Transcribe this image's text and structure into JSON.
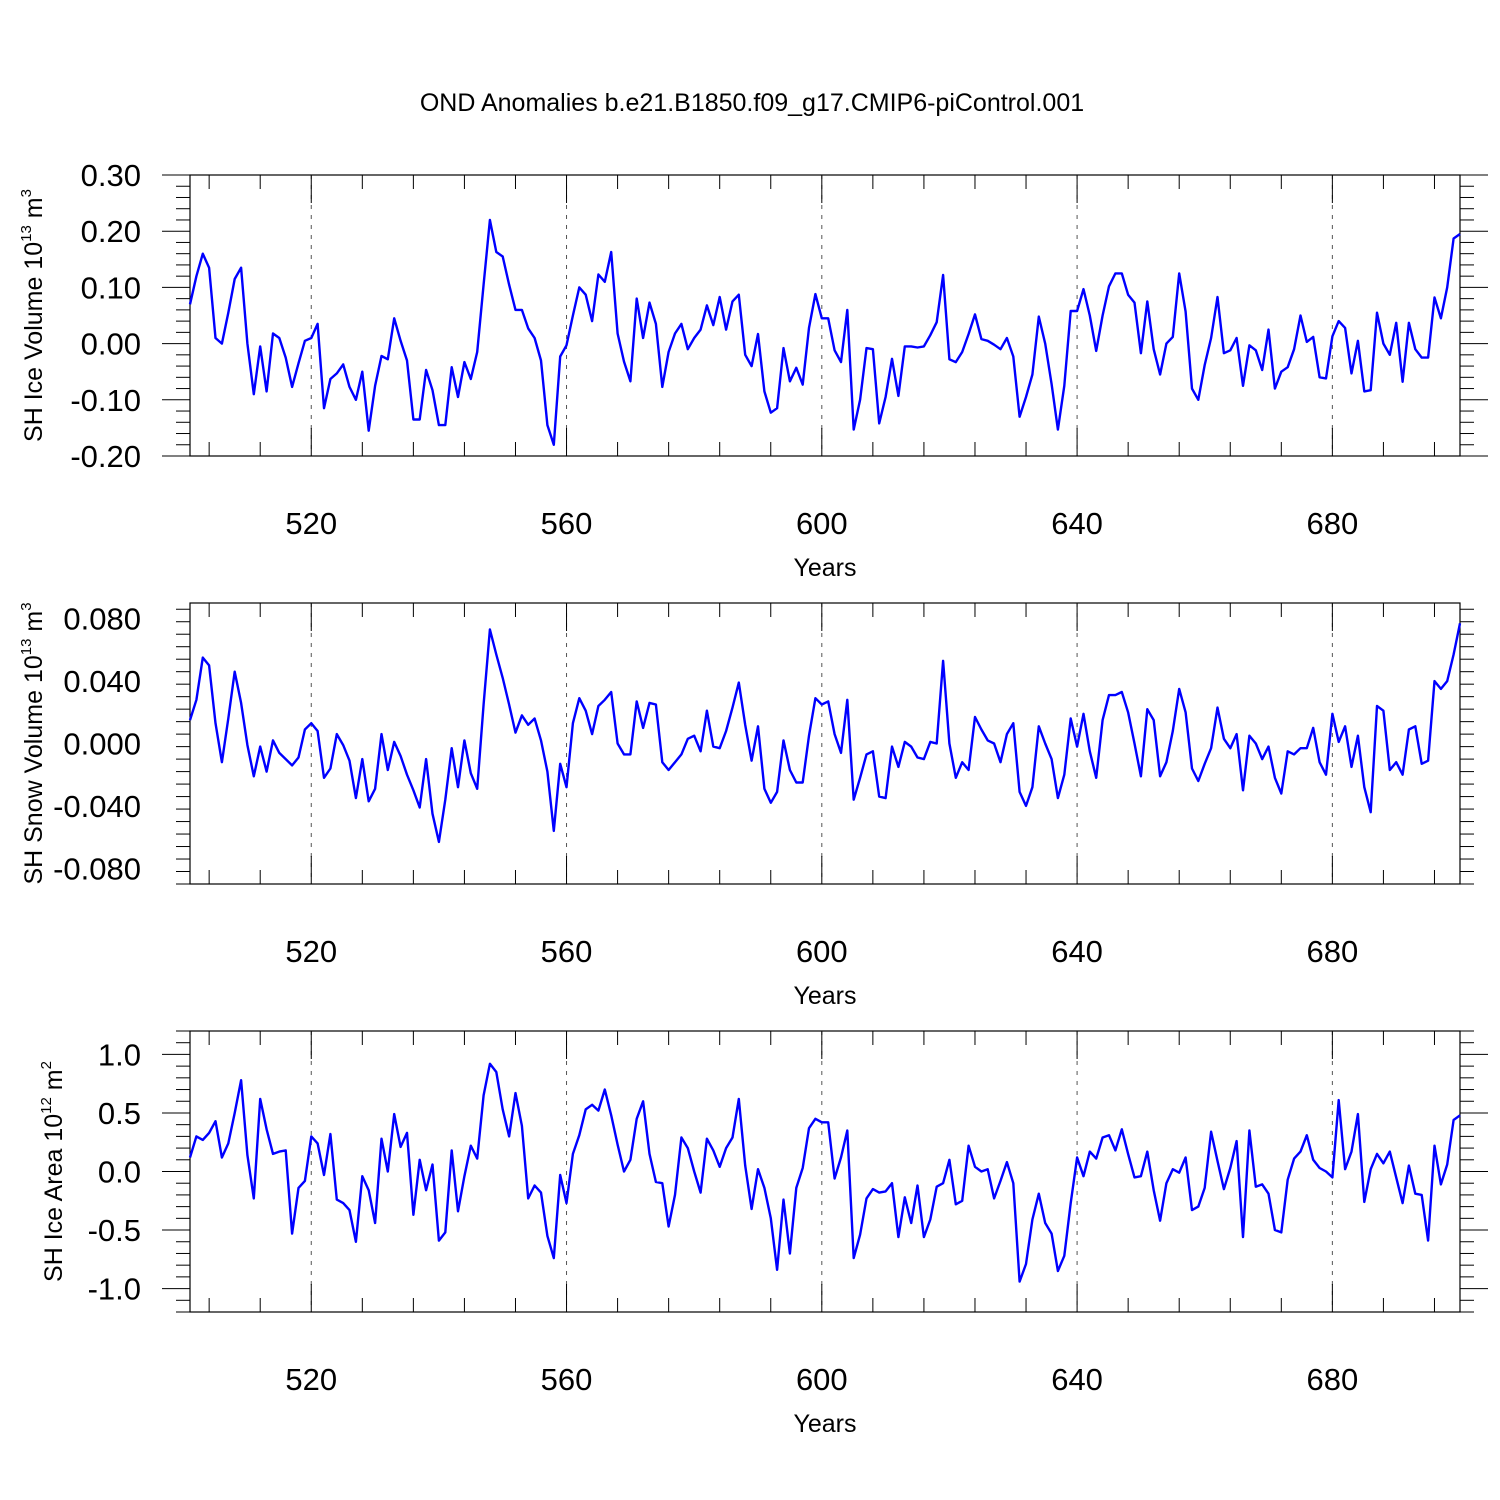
{
  "figure_title": "OND Anomalies b.e21.B1850.f09_g17.CMIP6-piControl.001",
  "chart_data": [
    {
      "type": "line",
      "title": "OND Anomalies b.e21.B1850.f09_g17.CMIP6-piControl.001",
      "xlabel": "Years",
      "ylabel_main": "SH Ice Volume 10",
      "ylabel_exp": "13",
      "ylabel_unit": " m",
      "ylabel_unit_exp": "3",
      "xlim": [
        501,
        700
      ],
      "ylim": [
        -0.2,
        0.3
      ],
      "yticks": [
        0.3,
        0.2,
        0.1,
        0.0,
        -0.1,
        -0.2
      ],
      "ytick_labels": [
        "0.30",
        "0.20",
        "0.10",
        "0.00",
        "-0.10",
        "-0.20"
      ],
      "xticks": [
        520,
        560,
        600,
        640,
        680
      ],
      "xtick_labels": [
        "520",
        "560",
        "600",
        "640",
        "680"
      ],
      "grid": "vertical dashed at major x ticks",
      "color": "#0000ff",
      "series": [
        {
          "name": "SH Ice Volume",
          "x_start": 501,
          "x_step": 1,
          "values": [
            0.07,
            0.12,
            0.16,
            0.135,
            0.01,
            0.0,
            0.055,
            0.115,
            0.135,
            0.0,
            -0.09,
            -0.005,
            -0.085,
            0.018,
            0.01,
            -0.025,
            -0.077,
            -0.035,
            0.005,
            0.01,
            0.035,
            -0.115,
            -0.063,
            -0.053,
            -0.037,
            -0.077,
            -0.1,
            -0.05,
            -0.155,
            -0.075,
            -0.022,
            -0.028,
            0.045,
            0.005,
            -0.03,
            -0.135,
            -0.135,
            -0.047,
            -0.083,
            -0.145,
            -0.145,
            -0.042,
            -0.095,
            -0.033,
            -0.063,
            -0.015,
            0.105,
            0.22,
            0.163,
            0.155,
            0.105,
            0.06,
            0.06,
            0.027,
            0.01,
            -0.03,
            -0.145,
            -0.18,
            -0.023,
            -0.003,
            0.05,
            0.1,
            0.087,
            0.04,
            0.123,
            0.11,
            0.163,
            0.018,
            -0.032,
            -0.067,
            0.08,
            0.01,
            0.073,
            0.035,
            -0.077,
            -0.015,
            0.018,
            0.035,
            -0.01,
            0.01,
            0.025,
            0.068,
            0.033,
            0.083,
            0.025,
            0.075,
            0.087,
            -0.02,
            -0.04,
            0.017,
            -0.085,
            -0.123,
            -0.115,
            -0.008,
            -0.067,
            -0.043,
            -0.073,
            0.028,
            0.088,
            0.045,
            0.045,
            -0.012,
            -0.033,
            0.06,
            -0.153,
            -0.1,
            -0.008,
            -0.01,
            -0.142,
            -0.095,
            -0.027,
            -0.093,
            -0.005,
            -0.005,
            -0.007,
            -0.005,
            0.015,
            0.038,
            0.122,
            -0.028,
            -0.033,
            -0.015,
            0.017,
            0.052,
            0.008,
            0.005,
            -0.002,
            -0.01,
            0.01,
            -0.023,
            -0.13,
            -0.095,
            -0.055,
            0.048,
            0.0,
            -0.072,
            -0.153,
            -0.075,
            0.058,
            0.058,
            0.097,
            0.05,
            -0.013,
            0.05,
            0.102,
            0.125,
            0.125,
            0.087,
            0.073,
            -0.017,
            0.075,
            -0.01,
            -0.055,
            0.0,
            0.012,
            0.125,
            0.057,
            -0.08,
            -0.1,
            -0.038,
            0.01,
            0.083,
            -0.017,
            -0.012,
            0.01,
            -0.075,
            -0.003,
            -0.012,
            -0.047,
            0.025,
            -0.08,
            -0.05,
            -0.042,
            -0.01,
            0.05,
            0.003,
            0.012,
            -0.06,
            -0.062,
            0.013,
            0.04,
            0.028,
            -0.053,
            0.005,
            -0.085,
            -0.083,
            0.055,
            0.0,
            -0.02,
            0.037,
            -0.068,
            0.037,
            -0.01,
            -0.025,
            -0.025,
            0.082,
            0.045,
            0.1,
            0.187,
            0.195
          ]
        }
      ]
    },
    {
      "type": "line",
      "xlabel": "Years",
      "ylabel_main": "SH Snow Volume 10",
      "ylabel_exp": "13",
      "ylabel_unit": " m",
      "ylabel_unit_exp": "3",
      "xlim": [
        501,
        700
      ],
      "ylim": [
        -0.09,
        0.09
      ],
      "yticks": [
        0.08,
        0.04,
        0.0,
        -0.04,
        -0.08
      ],
      "ytick_labels": [
        "0.080",
        "0.040",
        "0.000",
        "-0.040",
        "-0.080"
      ],
      "xticks": [
        520,
        560,
        600,
        640,
        680
      ],
      "xtick_labels": [
        "520",
        "560",
        "600",
        "640",
        "680"
      ],
      "grid": "vertical dashed at major x ticks",
      "color": "#0000ff",
      "series": [
        {
          "name": "SH Snow Volume",
          "x_start": 501,
          "x_step": 1,
          "values": [
            0.015,
            0.028,
            0.055,
            0.05,
            0.013,
            -0.012,
            0.016,
            0.046,
            0.026,
            -0.001,
            -0.021,
            -0.002,
            -0.018,
            0.002,
            -0.006,
            -0.01,
            -0.014,
            -0.009,
            0.009,
            0.013,
            0.008,
            -0.022,
            -0.016,
            0.006,
            -0.001,
            -0.011,
            -0.035,
            -0.01,
            -0.037,
            -0.029,
            0.006,
            -0.017,
            0.001,
            -0.008,
            -0.02,
            -0.03,
            -0.041,
            -0.01,
            -0.045,
            -0.063,
            -0.036,
            -0.003,
            -0.028,
            0.002,
            -0.019,
            -0.029,
            0.025,
            0.073,
            0.057,
            0.042,
            0.025,
            0.007,
            0.018,
            0.012,
            0.016,
            0.002,
            -0.018,
            -0.056,
            -0.013,
            -0.028,
            0.013,
            0.029,
            0.021,
            0.006,
            0.024,
            0.028,
            0.033,
            0.0,
            -0.007,
            -0.007,
            0.027,
            0.01,
            0.026,
            0.025,
            -0.012,
            -0.017,
            -0.012,
            -0.007,
            0.003,
            0.005,
            -0.005,
            0.021,
            -0.002,
            -0.003,
            0.008,
            0.023,
            0.039,
            0.012,
            -0.011,
            0.011,
            -0.029,
            -0.038,
            -0.031,
            0.002,
            -0.017,
            -0.025,
            -0.025,
            0.005,
            0.029,
            0.025,
            0.027,
            0.006,
            -0.006,
            0.028,
            -0.036,
            -0.022,
            -0.007,
            -0.005,
            -0.034,
            -0.035,
            -0.002,
            -0.015,
            0.001,
            -0.002,
            -0.009,
            -0.01,
            0.001,
            0.0,
            0.053,
            0.0,
            -0.022,
            -0.012,
            -0.017,
            0.017,
            0.009,
            0.002,
            0.0,
            -0.012,
            0.006,
            0.013,
            -0.031,
            -0.04,
            -0.028,
            0.011,
            0.0,
            -0.01,
            -0.035,
            -0.02,
            0.016,
            -0.002,
            0.019,
            -0.005,
            -0.022,
            0.015,
            0.031,
            0.031,
            0.033,
            0.02,
            0.0,
            -0.021,
            0.022,
            0.015,
            -0.021,
            -0.012,
            0.008,
            0.035,
            0.02,
            -0.016,
            -0.024,
            -0.013,
            -0.003,
            0.023,
            0.003,
            -0.003,
            0.006,
            -0.03,
            0.005,
            0.0,
            -0.01,
            -0.002,
            -0.022,
            -0.032,
            -0.005,
            -0.007,
            -0.003,
            -0.003,
            0.01,
            -0.012,
            -0.02,
            0.019,
            0.001,
            0.011,
            -0.015,
            0.005,
            -0.028,
            -0.044,
            0.024,
            0.021,
            -0.017,
            -0.012,
            -0.02,
            0.009,
            0.011,
            -0.013,
            -0.011,
            0.04,
            0.035,
            0.04,
            0.057,
            0.077
          ]
        }
      ]
    },
    {
      "type": "line",
      "xlabel": "Years",
      "ylabel_main": "SH Ice Area 10",
      "ylabel_exp": "12",
      "ylabel_unit": " m",
      "ylabel_unit_exp": "2",
      "xlim": [
        501,
        700
      ],
      "ylim": [
        -1.2,
        1.2
      ],
      "yticks": [
        1.0,
        0.5,
        0.0,
        -0.5,
        -1.0
      ],
      "ytick_labels": [
        "1.0",
        "0.5",
        "0.0",
        "-0.5",
        "-1.0"
      ],
      "xticks": [
        520,
        560,
        600,
        640,
        680
      ],
      "xtick_labels": [
        "520",
        "560",
        "600",
        "640",
        "680"
      ],
      "grid": "vertical dashed at major x ticks",
      "color": "#0000ff",
      "series": [
        {
          "name": "SH Ice Area",
          "x_start": 501,
          "x_step": 1,
          "values": [
            0.12,
            0.3,
            0.27,
            0.33,
            0.43,
            0.12,
            0.24,
            0.5,
            0.78,
            0.14,
            -0.23,
            0.62,
            0.36,
            0.15,
            0.17,
            0.18,
            -0.53,
            -0.14,
            -0.08,
            0.3,
            0.24,
            -0.03,
            0.32,
            -0.24,
            -0.27,
            -0.33,
            -0.6,
            -0.04,
            -0.16,
            -0.44,
            0.28,
            0.0,
            0.49,
            0.21,
            0.33,
            -0.37,
            0.1,
            -0.16,
            0.06,
            -0.59,
            -0.52,
            0.18,
            -0.34,
            -0.04,
            0.22,
            0.11,
            0.65,
            0.92,
            0.85,
            0.53,
            0.3,
            0.67,
            0.39,
            -0.23,
            -0.12,
            -0.18,
            -0.55,
            -0.74,
            -0.03,
            -0.27,
            0.15,
            0.31,
            0.53,
            0.57,
            0.52,
            0.7,
            0.48,
            0.23,
            0.0,
            0.1,
            0.45,
            0.6,
            0.15,
            -0.09,
            -0.1,
            -0.47,
            -0.2,
            0.29,
            0.2,
            0.0,
            -0.18,
            0.28,
            0.18,
            0.04,
            0.2,
            0.29,
            0.62,
            0.05,
            -0.32,
            0.02,
            -0.14,
            -0.4,
            -0.84,
            -0.24,
            -0.7,
            -0.14,
            0.03,
            0.37,
            0.45,
            0.42,
            0.42,
            -0.06,
            0.12,
            0.35,
            -0.74,
            -0.54,
            -0.23,
            -0.15,
            -0.18,
            -0.17,
            -0.1,
            -0.56,
            -0.22,
            -0.44,
            -0.12,
            -0.56,
            -0.41,
            -0.13,
            -0.1,
            0.1,
            -0.28,
            -0.25,
            0.22,
            0.04,
            0.0,
            0.02,
            -0.23,
            -0.08,
            0.08,
            -0.1,
            -0.94,
            -0.79,
            -0.41,
            -0.19,
            -0.44,
            -0.53,
            -0.85,
            -0.72,
            -0.27,
            0.12,
            -0.04,
            0.17,
            0.11,
            0.29,
            0.31,
            0.18,
            0.36,
            0.15,
            -0.05,
            -0.04,
            0.17,
            -0.16,
            -0.42,
            -0.1,
            0.02,
            -0.01,
            0.12,
            -0.33,
            -0.3,
            -0.14,
            0.34,
            0.09,
            -0.15,
            0.03,
            0.26,
            -0.56,
            0.35,
            -0.13,
            -0.11,
            -0.19,
            -0.5,
            -0.52,
            -0.07,
            0.11,
            0.17,
            0.31,
            0.1,
            0.03,
            0.0,
            -0.05,
            0.61,
            0.02,
            0.17,
            0.49,
            -0.26,
            0.02,
            0.15,
            0.07,
            0.17,
            -0.05,
            -0.27,
            0.05,
            -0.19,
            -0.2,
            -0.59,
            0.22,
            -0.11,
            0.06,
            0.44,
            0.48
          ]
        }
      ]
    }
  ]
}
